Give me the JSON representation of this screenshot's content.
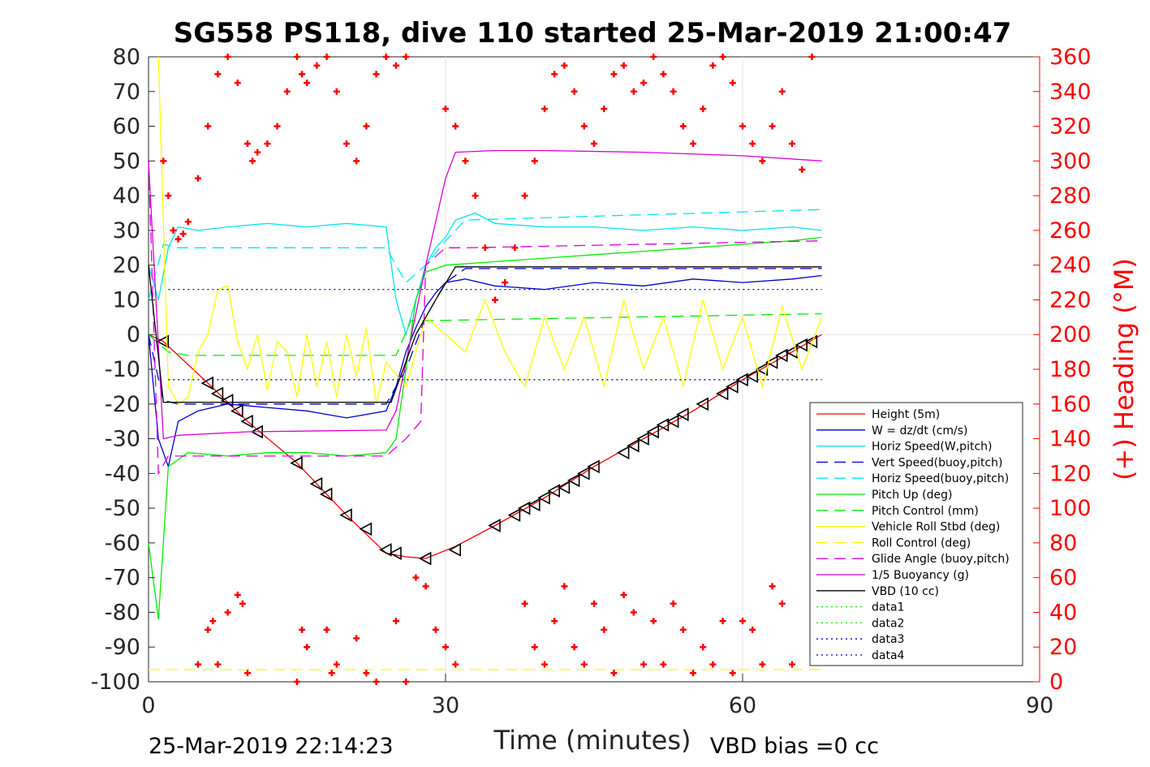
{
  "chart_data": {
    "type": "line",
    "title": "SG558 PS118, dive 110 started 25-Mar-2019 21:00:47",
    "xlabel": "Time (minutes)",
    "ylabel_right": "(+) Heading (°M)",
    "xlim": [
      0,
      90
    ],
    "ylim": [
      -100,
      80
    ],
    "ylim_right": [
      0,
      360
    ],
    "x_ticks": [
      "0",
      "30",
      "60",
      "90"
    ],
    "y_ticks": [
      "80",
      "70",
      "60",
      "50",
      "40",
      "30",
      "20",
      "10",
      "0",
      "-10",
      "-20",
      "-30",
      "-40",
      "-50",
      "-60",
      "-70",
      "-80",
      "-90",
      "-100"
    ],
    "y_ticks_right": [
      "360",
      "340",
      "320",
      "300",
      "280",
      "260",
      "240",
      "220",
      "200",
      "180",
      "160",
      "140",
      "120",
      "100",
      "80",
      "60",
      "40",
      "20",
      "0"
    ],
    "grid": true,
    "legend_position": "lower-right",
    "footer_left": "25-Mar-2019 22:14:23",
    "footer_right": "VBD bias =0 cc",
    "legend": [
      {
        "name": "Height (5m)",
        "color": "#ff0000",
        "style": "solid"
      },
      {
        "name": "W = dz/dt (cm/s)",
        "color": "#0000cc",
        "style": "solid"
      },
      {
        "name": "Horiz Speed(W,pitch)",
        "color": "#00e5ee",
        "style": "solid"
      },
      {
        "name": "Vert Speed(buoy,pitch)",
        "color": "#0000cc",
        "style": "dashed"
      },
      {
        "name": "Horiz Speed(buoy,pitch)",
        "color": "#00e5ee",
        "style": "dashed"
      },
      {
        "name": "Pitch Up (deg)",
        "color": "#00ee00",
        "style": "solid"
      },
      {
        "name": "Pitch Control (mm)",
        "color": "#00ee00",
        "style": "dashed"
      },
      {
        "name": "Vehicle Roll Stbd (deg)",
        "color": "#ffff00",
        "style": "solid"
      },
      {
        "name": "Roll Control (deg)",
        "color": "#ffff00",
        "style": "dashed"
      },
      {
        "name": "Glide Angle (buoy,pitch)",
        "color": "#dd00dd",
        "style": "dashed"
      },
      {
        "name": "1/5 Buoyancy (g)",
        "color": "#dd00dd",
        "style": "solid"
      },
      {
        "name": "VBD (10 cc)",
        "color": "#000000",
        "style": "solid"
      },
      {
        "name": "data1",
        "color": "#00ee00",
        "style": "dotted"
      },
      {
        "name": "data2",
        "color": "#00ee00",
        "style": "dotted"
      },
      {
        "name": "data3",
        "color": "#0000cc",
        "style": "dotted"
      },
      {
        "name": "data4",
        "color": "#0000cc",
        "style": "dotted"
      }
    ],
    "series": [
      {
        "name": "Height (5m)",
        "axis": "left",
        "x": [
          0,
          1.5,
          6,
          10,
          15,
          20,
          24,
          26,
          28,
          31,
          35,
          40,
          45,
          50,
          55,
          60,
          65,
          68
        ],
        "y": [
          0,
          -2,
          -14,
          -25,
          -37,
          -52,
          -63,
          -64,
          -64.5,
          -61,
          -55,
          -47,
          -38,
          -30,
          -22,
          -13,
          -5,
          0
        ]
      },
      {
        "name": "Height markers",
        "axis": "left",
        "x": [
          1.5,
          6,
          7,
          8,
          9,
          10,
          11,
          15,
          17,
          18,
          20,
          22,
          24,
          25,
          28,
          31,
          35,
          37,
          38,
          39,
          40,
          41,
          42,
          43,
          44,
          45,
          48,
          49,
          50,
          51,
          52,
          53,
          54,
          56,
          58,
          59,
          60,
          61,
          62,
          63,
          64,
          65,
          66,
          67
        ],
        "y": [
          -2,
          -14,
          -17,
          -19,
          -22,
          -25,
          -28,
          -37,
          -43,
          -46,
          -52,
          -56,
          -62,
          -63,
          -64.5,
          -62,
          -55,
          -52,
          -50,
          -49,
          -47,
          -45,
          -44,
          -42,
          -40,
          -38,
          -34,
          -32,
          -30,
          -28,
          -26,
          -25,
          -23,
          -20,
          -17,
          -15,
          -13,
          -12,
          -10,
          -8,
          -6,
          -5,
          -3,
          -2
        ]
      },
      {
        "name": "W = dz/dt (cm/s)",
        "axis": "left",
        "x": [
          0,
          1,
          2,
          3,
          5,
          8,
          12,
          16,
          20,
          24,
          25,
          26,
          27,
          28,
          29,
          30,
          32,
          35,
          40,
          45,
          50,
          55,
          60,
          65,
          68
        ],
        "y": [
          0,
          -30,
          -38,
          -25,
          -22,
          -20,
          -21,
          -22,
          -24,
          -22,
          -15,
          -5,
          2,
          8,
          12,
          15,
          16,
          14,
          13,
          15,
          14,
          16,
          15,
          16,
          17
        ]
      },
      {
        "name": "Horiz Speed(W,pitch)",
        "axis": "left",
        "x": [
          0,
          1,
          2,
          3,
          5,
          8,
          12,
          16,
          20,
          24,
          25,
          26,
          27,
          28,
          29,
          30,
          31,
          33,
          35,
          40,
          45,
          50,
          55,
          60,
          65,
          68
        ],
        "y": [
          20,
          10,
          25,
          31,
          30,
          31,
          32,
          31,
          32,
          31,
          10,
          0,
          10,
          20,
          25,
          28,
          33,
          35,
          32,
          31,
          31,
          30,
          31,
          30,
          31,
          30
        ]
      },
      {
        "name": "Vert Speed(buoy,pitch)",
        "axis": "left",
        "x": [
          0,
          1.5,
          3,
          24,
          26,
          28,
          30,
          32,
          68
        ],
        "y": [
          0,
          -19,
          -20,
          -20,
          -10,
          5,
          15,
          19,
          19
        ]
      },
      {
        "name": "Horiz Speed(buoy,pitch)",
        "axis": "left",
        "x": [
          0,
          1.5,
          3,
          24,
          26,
          28,
          30,
          32,
          68
        ],
        "y": [
          10,
          26,
          25,
          25,
          15,
          20,
          27,
          33,
          36
        ]
      },
      {
        "name": "Pitch Up (deg)",
        "axis": "left",
        "x": [
          0,
          1,
          2,
          4,
          8,
          12,
          16,
          20,
          24,
          25,
          26,
          27,
          28,
          30,
          35,
          40,
          45,
          50,
          55,
          60,
          65,
          68
        ],
        "y": [
          -60,
          -82,
          -38,
          -34,
          -35,
          -34,
          -34,
          -35,
          -34,
          -30,
          -10,
          10,
          18,
          20,
          21,
          22,
          23,
          24,
          25,
          26,
          27,
          28
        ]
      },
      {
        "name": "Pitch Control (mm)",
        "axis": "left",
        "x": [
          0,
          2,
          4,
          25,
          26.5,
          28,
          68
        ],
        "y": [
          0,
          -5,
          -6,
          -6,
          4,
          4,
          6
        ]
      },
      {
        "name": "Vehicle Roll Stbd (deg)",
        "axis": "left",
        "x": [
          1,
          2,
          3,
          4,
          5,
          6,
          7,
          8,
          9,
          10,
          11,
          12,
          13,
          14,
          15,
          16,
          17,
          18,
          19,
          20,
          21,
          22,
          23,
          24,
          26,
          28,
          30,
          32,
          34,
          36,
          38,
          40,
          42,
          44,
          46,
          48,
          50,
          52,
          54,
          56,
          58,
          60,
          62,
          64,
          66,
          68
        ],
        "y": [
          80,
          -15,
          -20,
          -18,
          -5,
          0,
          13,
          14,
          -2,
          -10,
          0,
          -16,
          -2,
          -5,
          -18,
          0,
          -15,
          -2,
          -18,
          0,
          -12,
          2,
          -20,
          -8,
          -15,
          5,
          0,
          -5,
          10,
          -5,
          -15,
          5,
          -10,
          5,
          -15,
          10,
          -10,
          5,
          -15,
          10,
          -10,
          5,
          -15,
          8,
          -10,
          5
        ]
      },
      {
        "name": "Glide Angle (buoy,pitch)",
        "axis": "left",
        "x": [
          0,
          1,
          2,
          4,
          24,
          26,
          27.5,
          28,
          30,
          32,
          68
        ],
        "y": [
          50,
          -40,
          -35,
          -35,
          -35,
          -30,
          -25,
          20,
          25,
          25,
          27
        ]
      },
      {
        "name": "1/5 Buoyancy (g)",
        "axis": "left",
        "x": [
          0,
          1.5,
          3,
          10,
          24,
          25,
          28,
          30,
          31,
          35,
          40,
          50,
          60,
          68
        ],
        "y": [
          50,
          -30,
          -29,
          -28,
          -27.5,
          -22,
          20,
          45,
          52.5,
          53,
          53,
          52.5,
          51.5,
          50
        ]
      },
      {
        "name": "VBD (10 cc)",
        "axis": "left",
        "x": [
          0,
          1.5,
          24.5,
          27,
          29,
          31,
          32,
          68
        ],
        "y": [
          20,
          -19.5,
          -19.5,
          0,
          10,
          19.5,
          19.5,
          19.5
        ]
      },
      {
        "name": "data3",
        "axis": "left",
        "x": [
          2,
          68
        ],
        "y": [
          13,
          13
        ]
      },
      {
        "name": "data4",
        "axis": "left",
        "x": [
          2,
          68
        ],
        "y": [
          -13,
          -13
        ]
      },
      {
        "name": "Roll Control (deg)",
        "axis": "left",
        "x": [
          0,
          68
        ],
        "y": [
          -96.5,
          -96.5
        ]
      },
      {
        "name": "Heading (+)",
        "axis": "right",
        "x": [
          1.5,
          2,
          2.5,
          3,
          3.5,
          4,
          5,
          6,
          7,
          8,
          9,
          10,
          10.5,
          11,
          12,
          13,
          14,
          15,
          15.5,
          16,
          17,
          18,
          19,
          20,
          21,
          22,
          23,
          24,
          25,
          26,
          30,
          31,
          32,
          33,
          34,
          35,
          36,
          37,
          38,
          39,
          40,
          41,
          42,
          43,
          44,
          45,
          46,
          47,
          48,
          49,
          50,
          51,
          52,
          53,
          54,
          55,
          56,
          57,
          58,
          59,
          60,
          61,
          62,
          63,
          64,
          65,
          66,
          67
        ],
        "y": [
          300,
          280,
          260,
          255,
          258,
          265,
          290,
          320,
          350,
          360,
          345,
          310,
          300,
          305,
          310,
          320,
          340,
          360,
          350,
          345,
          355,
          360,
          340,
          310,
          300,
          320,
          350,
          360,
          355,
          360,
          330,
          320,
          300,
          280,
          250,
          220,
          230,
          250,
          280,
          300,
          330,
          350,
          355,
          340,
          320,
          310,
          330,
          350,
          355,
          340,
          345,
          360,
          350,
          340,
          320,
          310,
          330,
          355,
          360,
          345,
          320,
          310,
          300,
          320,
          340,
          310,
          295,
          360
        ]
      },
      {
        "name": "Heading (+) low",
        "axis": "right",
        "x": [
          5,
          6,
          6.5,
          7,
          8,
          9,
          9.5,
          10,
          15,
          15.5,
          16,
          18,
          18.5,
          19,
          21,
          22,
          23,
          25,
          26,
          27,
          28,
          29,
          30,
          31,
          38,
          39,
          40,
          41,
          42,
          43,
          44,
          45,
          46,
          47,
          48,
          49,
          50,
          51,
          52,
          53,
          54,
          55,
          56,
          57,
          58,
          59,
          60,
          61,
          62,
          63,
          64,
          65
        ],
        "y": [
          10,
          30,
          35,
          10,
          40,
          50,
          45,
          5,
          0,
          30,
          20,
          30,
          5,
          10,
          25,
          5,
          0,
          35,
          0,
          60,
          55,
          30,
          20,
          10,
          45,
          20,
          10,
          35,
          55,
          20,
          10,
          45,
          30,
          5,
          50,
          40,
          10,
          35,
          10,
          45,
          30,
          5,
          20,
          10,
          35,
          5,
          35,
          30,
          10,
          55,
          45,
          10
        ]
      }
    ]
  }
}
